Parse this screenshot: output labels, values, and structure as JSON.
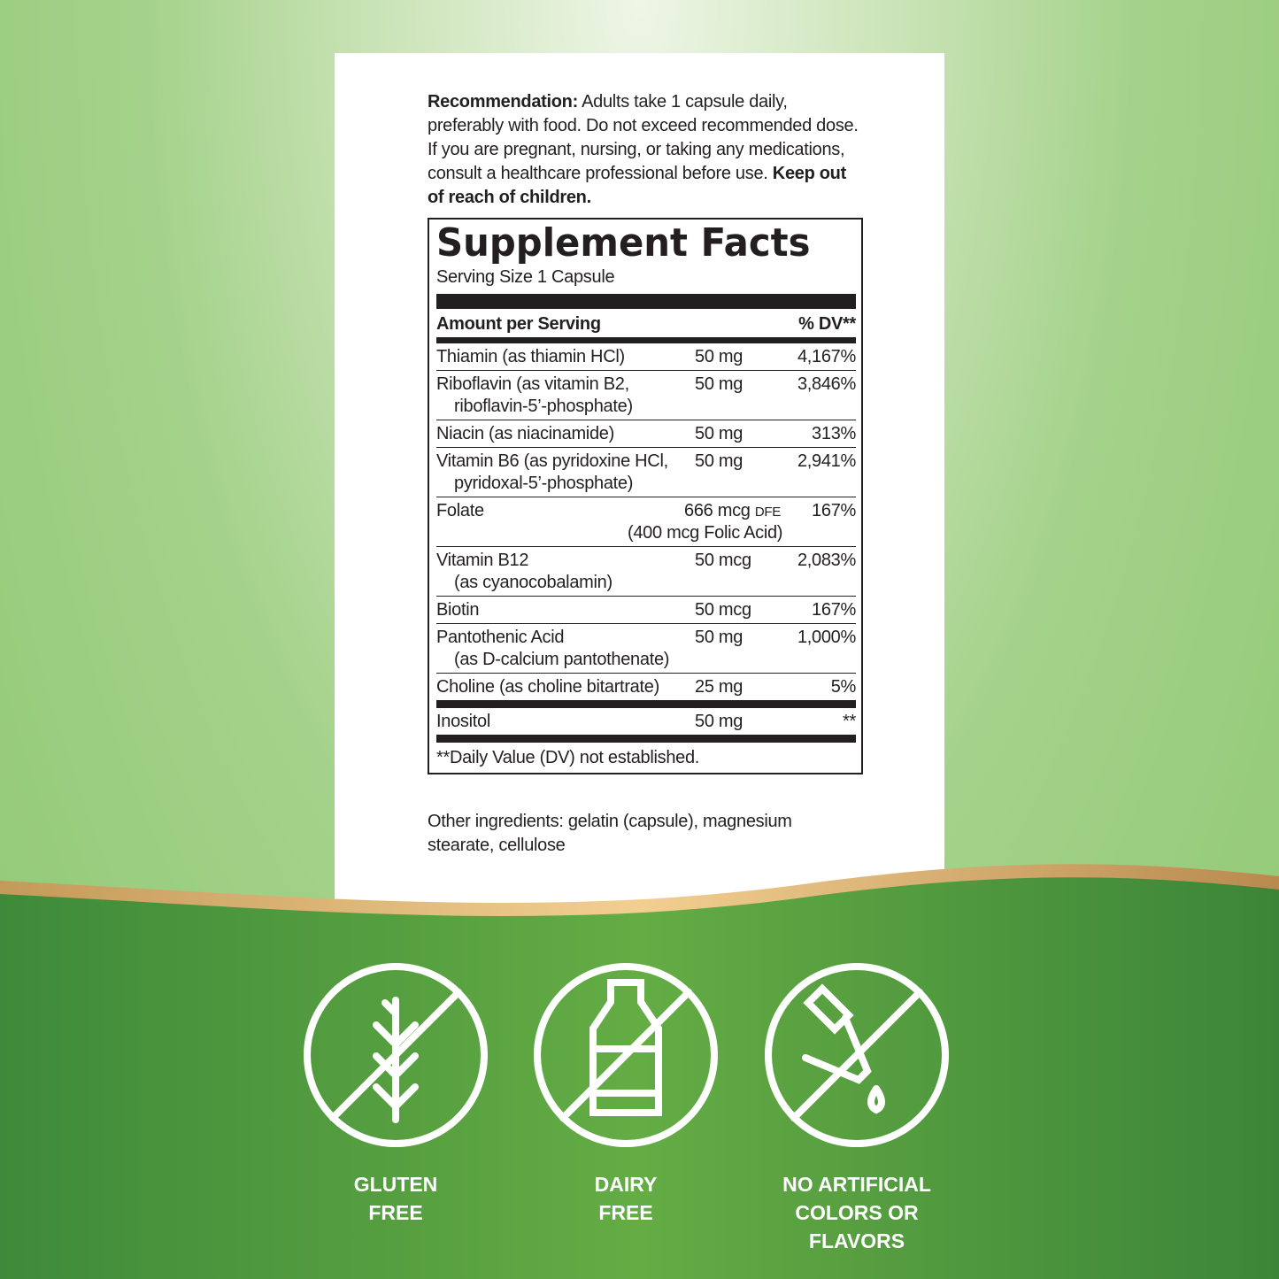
{
  "recommendation": {
    "label": "Recommendation:",
    "text": "Adults take 1 capsule daily, preferably with food. Do not exceed recommended dose. If you are pregnant, nursing, or taking any medications, consult a healthcare professional before use.",
    "warning": "Keep out of reach of children."
  },
  "facts": {
    "title": "Supplement Facts",
    "serving": "Serving Size 1 Capsule",
    "header_amount": "Amount per Serving",
    "header_dv": "% DV**",
    "rows": [
      {
        "name": "Thiamin (as thiamin HCl)",
        "amount": "50 mg",
        "dv": "4,167%"
      },
      {
        "name": "Riboflavin (as vitamin B2,",
        "sub": "riboflavin-5’-phosphate)",
        "amount": "50 mg",
        "dv": "3,846%"
      },
      {
        "name": "Niacin (as niacinamide)",
        "amount": "50 mg",
        "dv": "313%"
      },
      {
        "name": "Vitamin B6 (as pyridoxine HCl,",
        "sub": "pyridoxal-5’-phosphate)",
        "amount": "50 mg",
        "dv": "2,941%"
      },
      {
        "name": "Folate",
        "amount": "666 mcg",
        "unit": "DFE",
        "dv": "167%",
        "note": "(400 mcg Folic Acid)"
      },
      {
        "name": "Vitamin B12",
        "sub": "(as cyanocobalamin)",
        "amount": "50 mcg",
        "dv": "2,083%"
      },
      {
        "name": "Biotin",
        "amount": "50 mcg",
        "dv": "167%"
      },
      {
        "name": "Pantothenic Acid",
        "sub": "(as D-calcium pantothenate)",
        "amount": "50 mg",
        "dv": "1,000%"
      },
      {
        "name": "Choline (as choline bitartrate)",
        "amount": "25 mg",
        "dv": "5%"
      },
      {
        "name": "Inositol",
        "amount": "50 mg",
        "dv": "**"
      }
    ],
    "footnote": "**Daily Value (DV) not established."
  },
  "other_ingredients": "Other ingredients: gelatin (capsule), magnesium stearate, cellulose",
  "badges": [
    [
      "GLUTEN",
      "FREE"
    ],
    [
      "DAIRY",
      "FREE"
    ],
    [
      "NO ARTIFICIAL",
      "COLORS OR",
      "FLAVORS"
    ]
  ]
}
